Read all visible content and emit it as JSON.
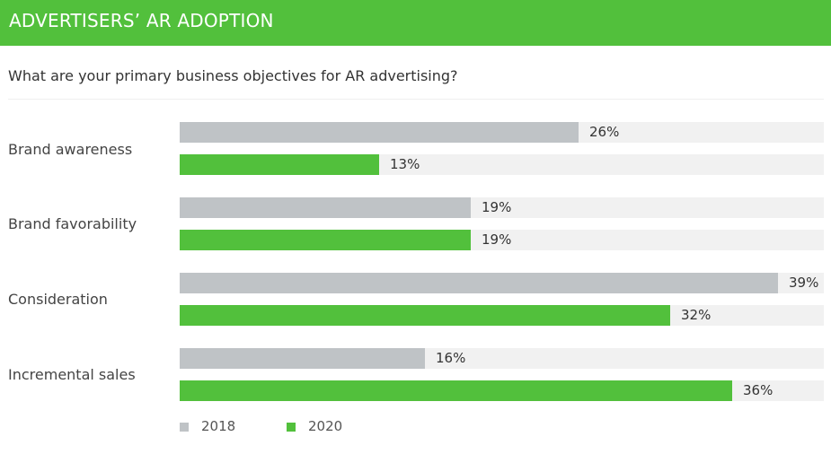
{
  "header": {
    "title": "ADVERTISERS’ AR ADOPTION"
  },
  "question": "What are your primary business objectives for AR advertising?",
  "colors": {
    "header": "#52c03c",
    "series_2018": "#bfc3c6",
    "series_2020": "#52c03c",
    "track": "#f1f1f1"
  },
  "chart_data": {
    "type": "bar",
    "orientation": "horizontal",
    "title": "What are your primary business objectives for AR advertising?",
    "categories": [
      "Brand awareness",
      "Brand favorability",
      "Consideration",
      "Incremental sales"
    ],
    "series": [
      {
        "name": "2018",
        "values": [
          26,
          19,
          39,
          16
        ],
        "labels": [
          "26%",
          "19%",
          "39%",
          "16%"
        ]
      },
      {
        "name": "2020",
        "values": [
          13,
          19,
          32,
          36
        ],
        "labels": [
          "13%",
          "19%",
          "32%",
          "36%"
        ]
      }
    ],
    "xlim": [
      0,
      42
    ],
    "unit": "%",
    "legend": [
      "2018",
      "2020"
    ],
    "legend_position": "bottom-left"
  }
}
